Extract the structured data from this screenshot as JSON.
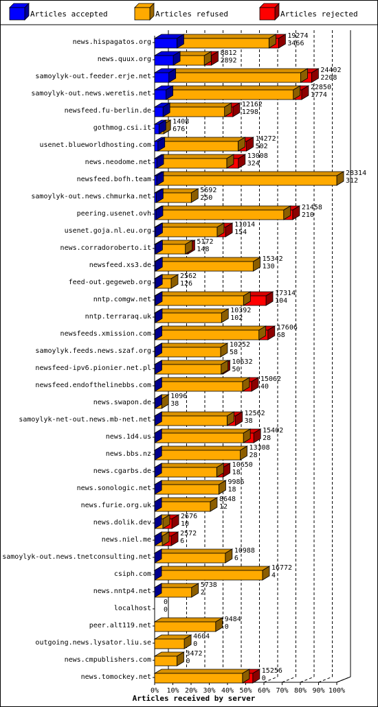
{
  "chart_data": {
    "type": "bar",
    "stacked": true,
    "orientation": "horizontal",
    "title": "",
    "xlabel": "Articles received by server",
    "ylabel": "",
    "xlim": [
      0,
      100
    ],
    "x_unit": "%",
    "x_ticks": [
      "0%",
      "10%",
      "20%",
      "30%",
      "40%",
      "50%",
      "60%",
      "70%",
      "80%",
      "90%",
      "100%"
    ],
    "grid": "vertical dashed",
    "legend_position": "top",
    "max_total": 28314,
    "legend": [
      {
        "name": "Articles accepted",
        "color": "#0000ff"
      },
      {
        "name": "Articles refused",
        "color": "#ffaa00"
      },
      {
        "name": "Articles rejected",
        "color": "#ff0000"
      }
    ],
    "categories": [
      "news.hispagatos.org",
      "news.quux.org",
      "samoylyk-out.feeder.erje.net",
      "samoylyk-out.news.weretis.net",
      "newsfeed.fu-berlin.de",
      "gothmog.csi.it",
      "usenet.blueworldhosting.com",
      "news.neodome.net",
      "newsfeed.bofh.team",
      "samoylyk-out.news.chmurka.net",
      "peering.usenet.ovh",
      "usenet.goja.nl.eu.org",
      "news.corradoroberto.it",
      "newsfeed.xs3.de",
      "feed-out.gegeweb.org",
      "nntp.comgw.net",
      "nntp.terraraq.uk",
      "newsfeeds.xmission.com",
      "samoylyk.feeds.news.szaf.org",
      "newsfeed-ipv6.pionier.net.pl",
      "newsfeed.endofthelinebbs.com",
      "news.swapon.de",
      "samoylyk-net-out.news.mb-net.net",
      "news.1d4.us",
      "news.bbs.nz",
      "news.cgarbs.de",
      "news.sonologic.net",
      "news.furie.org.uk",
      "news.dolik.dev",
      "news.niel.me",
      "samoylyk-out.news.tnetconsulting.net",
      "csiph.com",
      "news.nntp4.net",
      "localhost",
      "peer.alt119.net",
      "outgoing.news.lysator.liu.se",
      "news.cmpublishers.com",
      "news.tomockey.net"
    ],
    "totals": [
      19274,
      8812,
      24402,
      22850,
      12162,
      1408,
      14272,
      13008,
      28314,
      5692,
      21458,
      11014,
      5172,
      15342,
      2562,
      17314,
      10392,
      17606,
      10252,
      10632,
      15062,
      1096,
      12562,
      15402,
      13308,
      10650,
      9986,
      8648,
      2676,
      2572,
      10988,
      16772,
      5738,
      0,
      9484,
      4604,
      3472,
      15256
    ],
    "accepted": [
      3466,
      2892,
      2208,
      1774,
      1298,
      676,
      502,
      324,
      312,
      250,
      210,
      154,
      148,
      130,
      126,
      104,
      102,
      68,
      58,
      50,
      40,
      38,
      38,
      28,
      28,
      18,
      18,
      12,
      10,
      6,
      6,
      4,
      2,
      0,
      0,
      0,
      0,
      0
    ],
    "rejected": [
      1500,
      1100,
      1700,
      1300,
      1300,
      0,
      1300,
      1800,
      0,
      0,
      1400,
      1300,
      400,
      0,
      0,
      3500,
      0,
      1400,
      0,
      300,
      1400,
      0,
      1300,
      1600,
      0,
      1000,
      0,
      0,
      1400,
      1400,
      0,
      0,
      0,
      0,
      0,
      0,
      0,
      1600
    ]
  }
}
